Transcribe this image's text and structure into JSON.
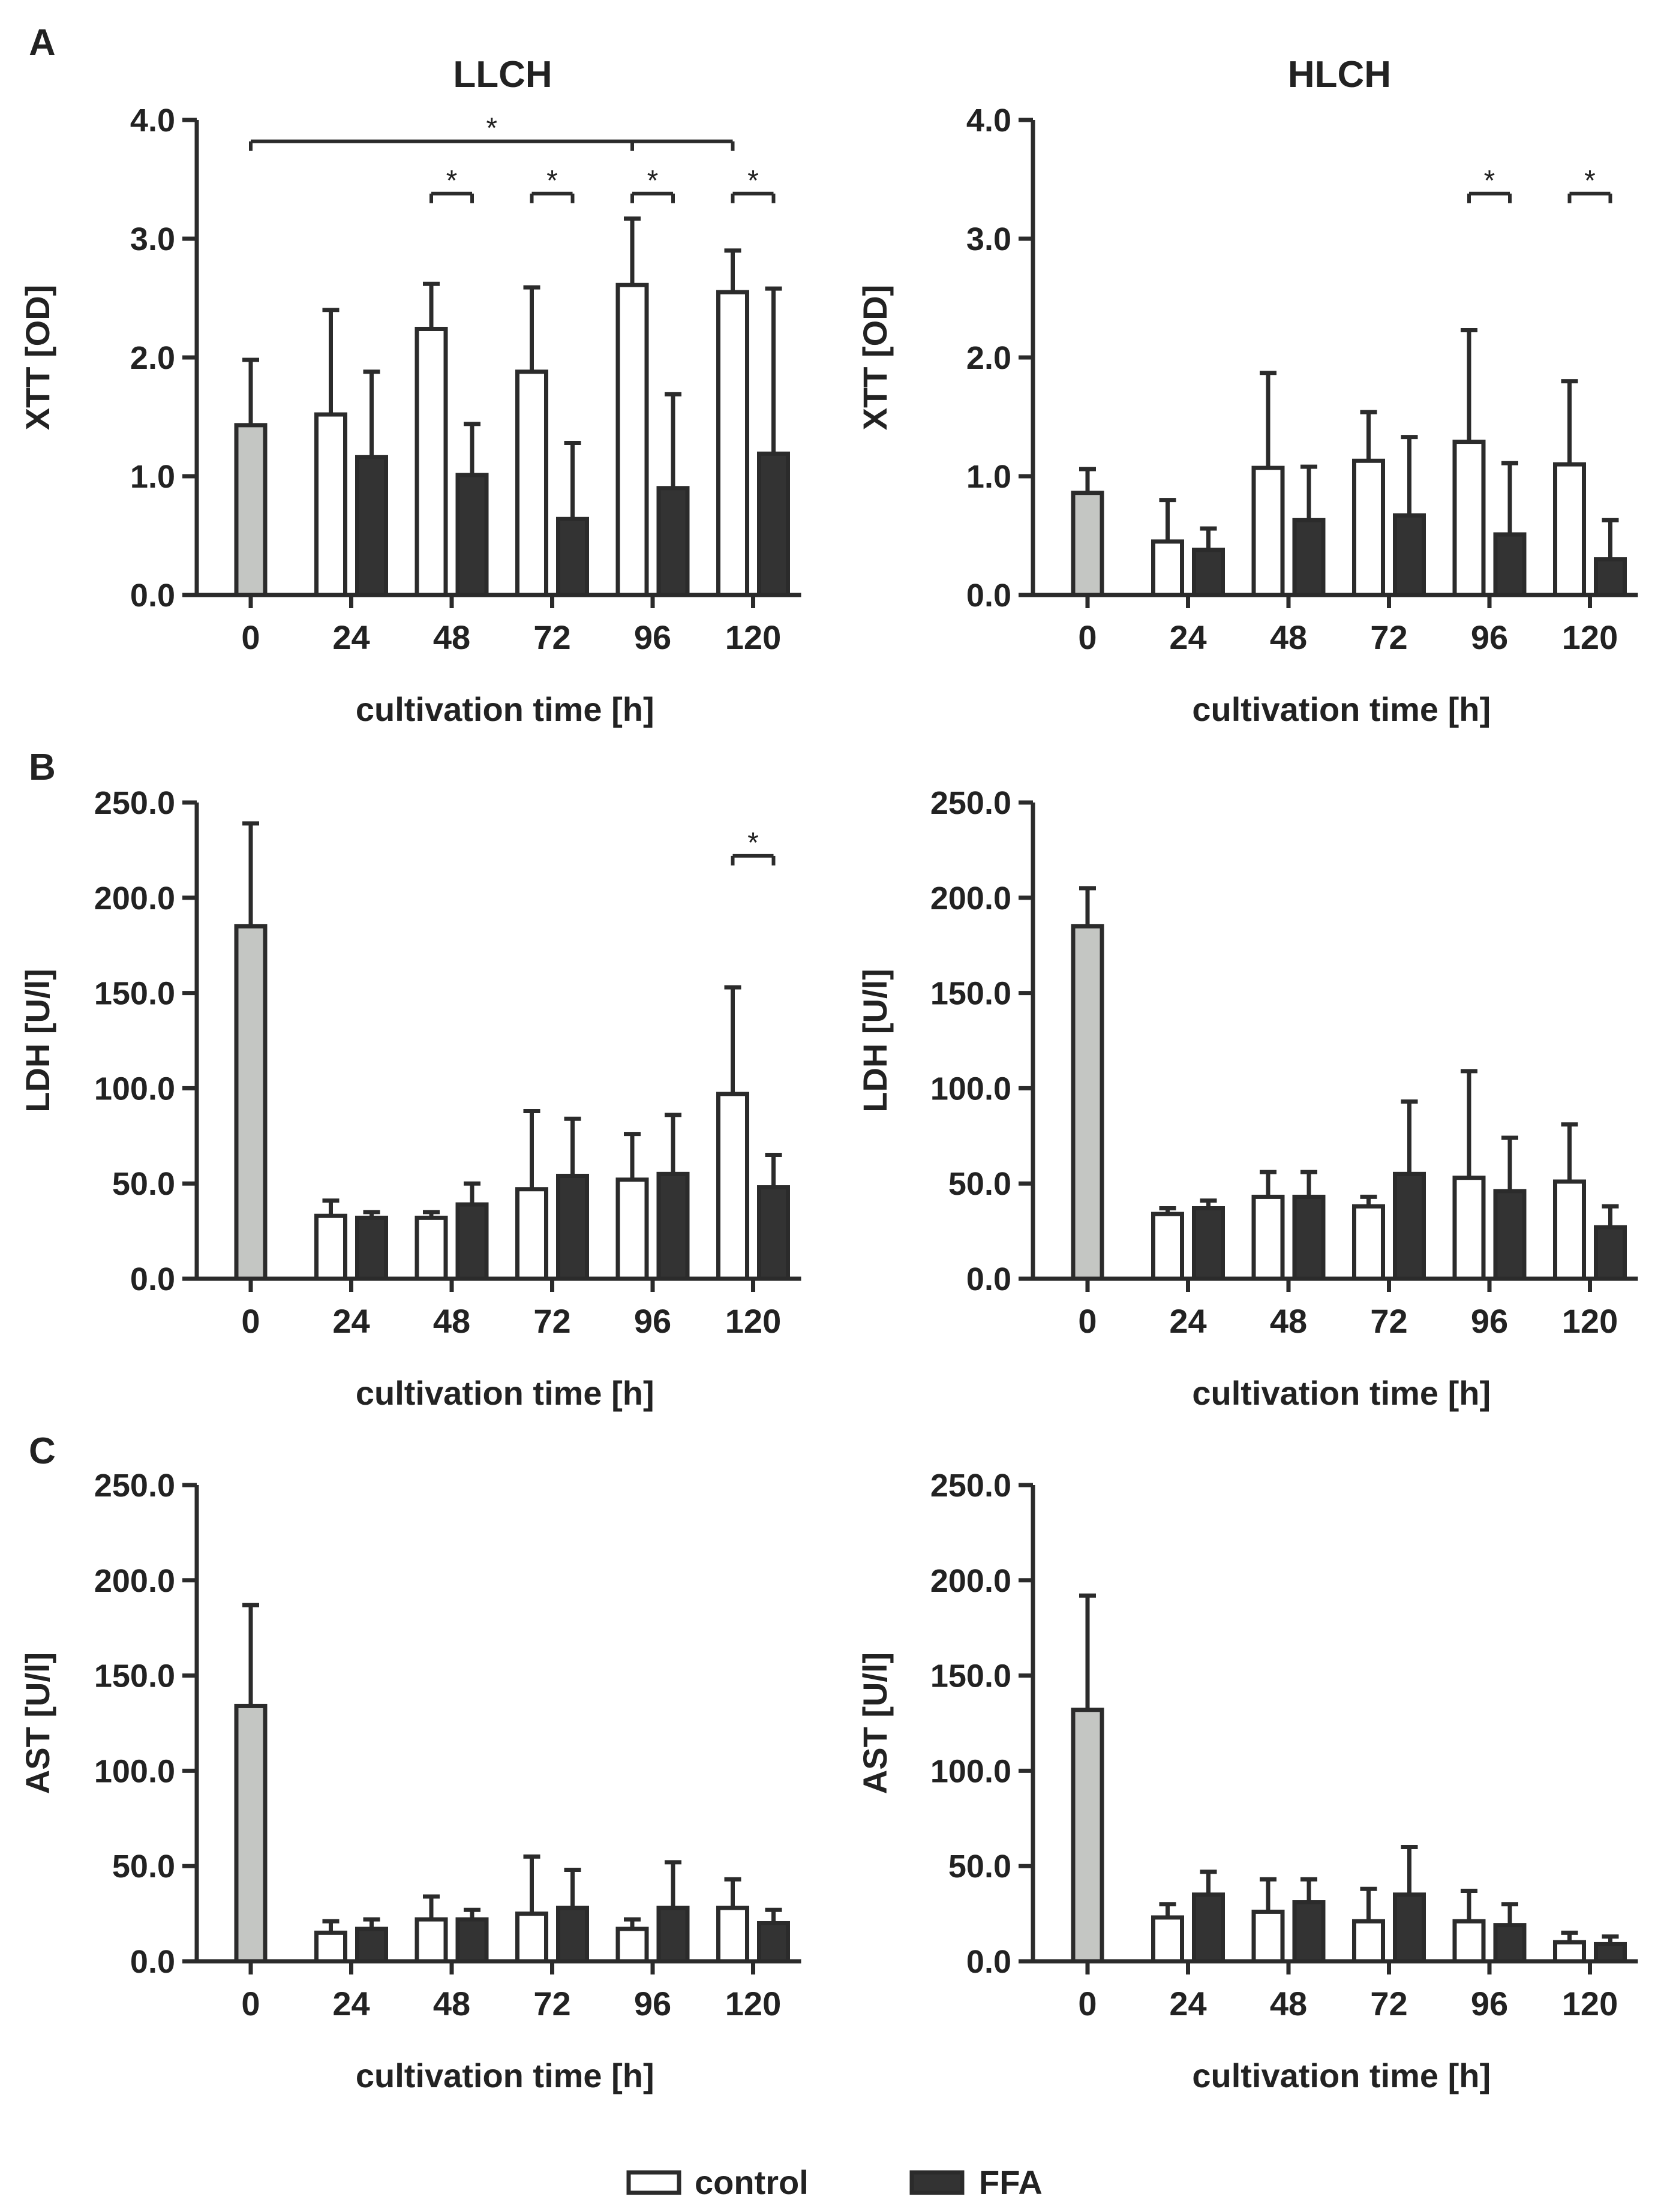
{
  "panel_letters": [
    "A",
    "B",
    "C"
  ],
  "column_titles": [
    "LLCH",
    "HLCH"
  ],
  "legend": [
    {
      "label": "control",
      "fill": "#ffffff",
      "stroke": "#2b2b2b"
    },
    {
      "label": "FFA",
      "fill": "#333333",
      "stroke": "#2b2b2b"
    }
  ],
  "colors": {
    "baseline": "#c4c6c3",
    "control": "#ffffff",
    "ffa": "#333333",
    "axis": "#2b2b2b"
  },
  "chart_data": [
    {
      "type": "bar",
      "panel": "A",
      "title": "LLCH",
      "xlabel": "cultivation time [h]",
      "ylabel": "XTT [OD]",
      "ylim": [
        0,
        4.0
      ],
      "yticks": [
        "0.0",
        "1.0",
        "2.0",
        "3.0",
        "4.0"
      ],
      "categories": [
        "0",
        "24",
        "48",
        "72",
        "96",
        "120"
      ],
      "baseline": {
        "category": "0",
        "value": 1.43,
        "error": 0.55
      },
      "series": [
        {
          "name": "control",
          "values": [
            null,
            1.52,
            2.24,
            1.88,
            2.61,
            2.55
          ],
          "errors": [
            null,
            0.88,
            0.38,
            0.71,
            0.56,
            0.35
          ]
        },
        {
          "name": "FFA",
          "values": [
            null,
            1.16,
            1.01,
            0.64,
            0.9,
            1.19
          ],
          "errors": [
            null,
            0.72,
            0.43,
            0.64,
            0.79,
            1.39
          ]
        }
      ],
      "significance": [
        {
          "type": "span",
          "from": "0",
          "to": "120",
          "y": 3.82,
          "label": "*"
        },
        {
          "type": "pair",
          "category": "48",
          "y": 3.38,
          "label": "*"
        },
        {
          "type": "pair",
          "category": "72",
          "y": 3.38,
          "label": "*"
        },
        {
          "type": "pair",
          "category": "96",
          "y": 3.38,
          "label": "*"
        },
        {
          "type": "pair",
          "category": "120",
          "y": 3.38,
          "label": "*"
        }
      ]
    },
    {
      "type": "bar",
      "panel": "A",
      "title": "HLCH",
      "xlabel": "cultivation time [h]",
      "ylabel": "XTT [OD]",
      "ylim": [
        0,
        4.0
      ],
      "yticks": [
        "0.0",
        "1.0",
        "2.0",
        "3.0",
        "4.0"
      ],
      "categories": [
        "0",
        "24",
        "48",
        "72",
        "96",
        "120"
      ],
      "baseline": {
        "category": "0",
        "value": 0.86,
        "error": 0.2
      },
      "series": [
        {
          "name": "control",
          "values": [
            null,
            0.45,
            1.07,
            1.13,
            1.29,
            1.1
          ],
          "errors": [
            null,
            0.35,
            0.8,
            0.41,
            0.94,
            0.7
          ]
        },
        {
          "name": "FFA",
          "values": [
            null,
            0.38,
            0.63,
            0.67,
            0.51,
            0.3
          ],
          "errors": [
            null,
            0.18,
            0.45,
            0.66,
            0.6,
            0.33
          ]
        }
      ],
      "significance": [
        {
          "type": "pair",
          "category": "96",
          "y": 3.38,
          "label": "*"
        },
        {
          "type": "pair",
          "category": "120",
          "y": 3.38,
          "label": "*"
        }
      ]
    },
    {
      "type": "bar",
      "panel": "B",
      "title": "",
      "xlabel": "cultivation time [h]",
      "ylabel": "LDH [U/l]",
      "ylim": [
        0,
        250.0
      ],
      "yticks": [
        "0.0",
        "50.0",
        "100.0",
        "150.0",
        "200.0",
        "250.0"
      ],
      "categories": [
        "0",
        "24",
        "48",
        "72",
        "96",
        "120"
      ],
      "baseline": {
        "category": "0",
        "value": 185,
        "error": 54
      },
      "series": [
        {
          "name": "control",
          "values": [
            null,
            33,
            32,
            47,
            52,
            97
          ],
          "errors": [
            null,
            8,
            3,
            41,
            24,
            56
          ]
        },
        {
          "name": "FFA",
          "values": [
            null,
            32,
            39,
            54,
            55,
            48
          ],
          "errors": [
            null,
            3,
            11,
            30,
            31,
            17
          ]
        }
      ],
      "significance": [
        {
          "type": "pair",
          "category": "120",
          "y": 222,
          "label": "*"
        }
      ]
    },
    {
      "type": "bar",
      "panel": "B",
      "title": "",
      "xlabel": "cultivation time [h]",
      "ylabel": "LDH [U/l]",
      "ylim": [
        0,
        250.0
      ],
      "yticks": [
        "0.0",
        "50.0",
        "100.0",
        "150.0",
        "200.0",
        "250.0"
      ],
      "categories": [
        "0",
        "24",
        "48",
        "72",
        "96",
        "120"
      ],
      "baseline": {
        "category": "0",
        "value": 185,
        "error": 20
      },
      "series": [
        {
          "name": "control",
          "values": [
            null,
            34,
            43,
            38,
            53,
            51
          ],
          "errors": [
            null,
            3,
            13,
            5,
            56,
            30
          ]
        },
        {
          "name": "FFA",
          "values": [
            null,
            37,
            43,
            55,
            46,
            27
          ],
          "errors": [
            null,
            4,
            13,
            38,
            28,
            11
          ]
        }
      ],
      "significance": []
    },
    {
      "type": "bar",
      "panel": "C",
      "title": "",
      "xlabel": "cultivation time [h]",
      "ylabel": "AST [U/l]",
      "ylim": [
        0,
        250.0
      ],
      "yticks": [
        "0.0",
        "50.0",
        "100.0",
        "150.0",
        "200.0",
        "250.0"
      ],
      "categories": [
        "0",
        "24",
        "48",
        "72",
        "96",
        "120"
      ],
      "baseline": {
        "category": "0",
        "value": 134,
        "error": 53
      },
      "series": [
        {
          "name": "control",
          "values": [
            null,
            15,
            22,
            25,
            17,
            28
          ],
          "errors": [
            null,
            6,
            12,
            30,
            5,
            15
          ]
        },
        {
          "name": "FFA",
          "values": [
            null,
            17,
            22,
            28,
            28,
            20
          ],
          "errors": [
            null,
            5,
            5,
            20,
            24,
            7
          ]
        }
      ],
      "significance": []
    },
    {
      "type": "bar",
      "panel": "C",
      "title": "",
      "xlabel": "cultivation time [h]",
      "ylabel": "AST [U/l]",
      "ylim": [
        0,
        250.0
      ],
      "yticks": [
        "0.0",
        "50.0",
        "100.0",
        "150.0",
        "200.0",
        "250.0"
      ],
      "categories": [
        "0",
        "24",
        "48",
        "72",
        "96",
        "120"
      ],
      "baseline": {
        "category": "0",
        "value": 132,
        "error": 60
      },
      "series": [
        {
          "name": "control",
          "values": [
            null,
            23,
            26,
            21,
            21,
            10
          ],
          "errors": [
            null,
            7,
            17,
            17,
            16,
            5
          ]
        },
        {
          "name": "FFA",
          "values": [
            null,
            35,
            31,
            35,
            19,
            9
          ],
          "errors": [
            null,
            12,
            12,
            25,
            11,
            4
          ]
        }
      ],
      "significance": []
    }
  ]
}
